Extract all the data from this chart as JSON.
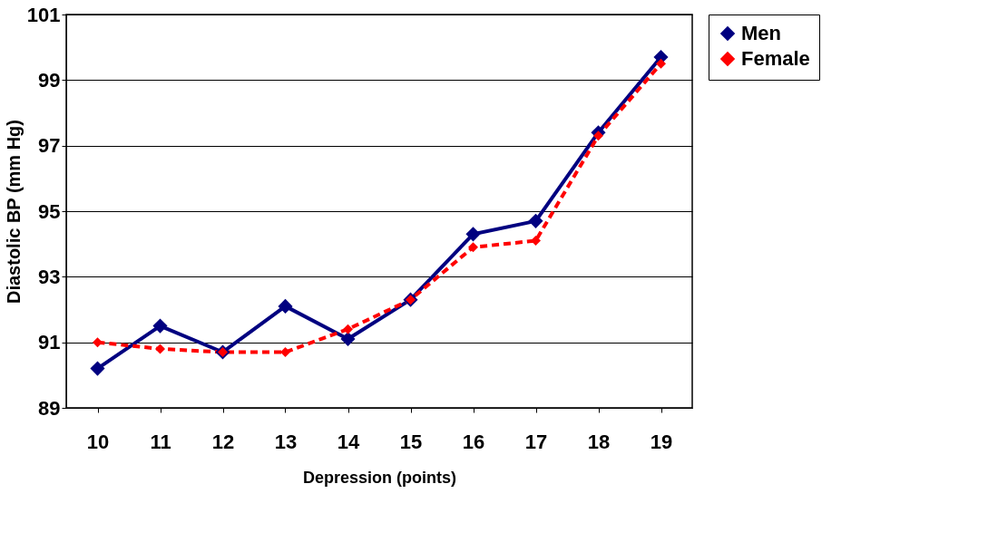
{
  "chart_data": {
    "type": "line",
    "xlabel": "Depression (points)",
    "ylabel": "Diastolic BP (mm Hg)",
    "categories": [
      "10",
      "11",
      "12",
      "13",
      "14",
      "15",
      "16",
      "17",
      "18",
      "19"
    ],
    "series": [
      {
        "name": "Men",
        "color": "#000080",
        "line_style": "solid",
        "values": [
          90.2,
          91.5,
          90.7,
          92.1,
          91.1,
          92.3,
          94.3,
          94.7,
          97.4,
          99.7
        ]
      },
      {
        "name": "Female",
        "color": "#ff0000",
        "line_style": "dashed",
        "values": [
          91.0,
          90.8,
          90.7,
          90.7,
          91.4,
          92.3,
          93.9,
          94.1,
          97.3,
          99.5
        ]
      }
    ],
    "ylim": [
      89,
      101
    ],
    "yticks": [
      89,
      91,
      93,
      95,
      97,
      99,
      101
    ],
    "grid": "y",
    "legend": "right",
    "marker": "diamond"
  }
}
